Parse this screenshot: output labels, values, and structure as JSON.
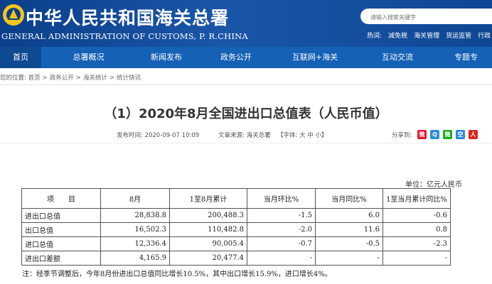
{
  "header": {
    "title_cn": "中华人民共和国海关总署",
    "title_en": "GENERAL ADMINISTRATION OF CUSTOMS, P. R.CHINA",
    "search_placeholder": "请输入搜索关键字",
    "hot_label": "热词:",
    "hot_words": [
      "减免税",
      "海关管理",
      "货运监管",
      "行政"
    ]
  },
  "nav": {
    "items": [
      "首页",
      "总署概况",
      "新闻发布",
      "政务公开",
      "互联网+海关",
      "互动交流",
      "专题专"
    ]
  },
  "breadcrumb": {
    "label": "您的位置:",
    "items": [
      "首页",
      "政务公开",
      "海关统计",
      "统计快讯"
    ],
    "separator": ">"
  },
  "article": {
    "title": "（1）2020年8月全国进出口总值表（人民币值）",
    "published": "发布时间: 2020-09-07 10:09",
    "source": "文章来源: 海关总署",
    "font_size": "【字体: 大 中 小】",
    "share_label": "分享到:",
    "share_icons": [
      {
        "name": "weibo-icon",
        "color": "#e6162d",
        "glyph": "微"
      },
      {
        "name": "qq-icon",
        "color": "#2a8fd8",
        "glyph": "Q"
      },
      {
        "name": "wechat-icon",
        "color": "#1aad19",
        "glyph": "微"
      },
      {
        "name": "qzone-icon",
        "color": "#2b88d8",
        "glyph": "空"
      },
      {
        "name": "renren-icon",
        "color": "#d9261c",
        "glyph": "人"
      }
    ]
  },
  "table": {
    "unit": "单位：亿元人民币",
    "headers": [
      "项　　目",
      "8月",
      "1至8月累计",
      "当月环比%",
      "当月同比%",
      "1至当月累计同比%"
    ],
    "rows": [
      [
        "进出口总值",
        "28,838.8",
        "200,488.3",
        "-1.5",
        "6.0",
        "-0.6"
      ],
      [
        "出口总值",
        "16,502.3",
        "110,482.8",
        "-2.0",
        "11.6",
        "0.8"
      ],
      [
        "进口总值",
        "12,336.4",
        "90,005.4",
        "-0.7",
        "-0.5",
        "-2.3"
      ],
      [
        "进出口差额",
        "4,165.9",
        "20,477.4",
        "-",
        "-",
        "-"
      ]
    ]
  },
  "note": "注：经季节调整后，今年8月份进出口总值同比增长10.5%，其中出口增长15.9%，进口增长4%。",
  "colors": {
    "header_bg": "#0b3f8a",
    "nav_bg": "#1561b6",
    "nav_active": "#0e4a92"
  }
}
